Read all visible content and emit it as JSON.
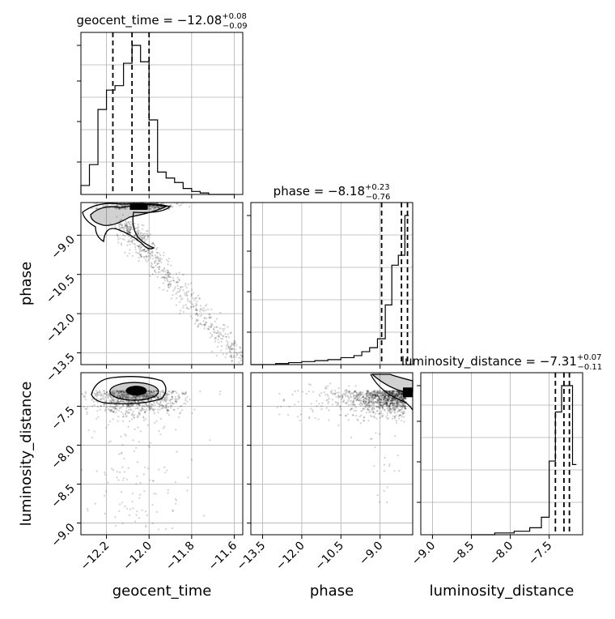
{
  "chart_data": {
    "type": "corner",
    "parameters": [
      "geocent_time",
      "phase",
      "luminosity_distance"
    ],
    "titles": [
      {
        "param": "geocent_time",
        "median": "−12.08",
        "plus": "+0.08",
        "minus": "−0.09"
      },
      {
        "param": "phase",
        "median": "−8.18",
        "plus": "+0.23",
        "minus": "−0.76"
      },
      {
        "param": "luminosity_distance",
        "median": "−7.31",
        "plus": "+0.07",
        "minus": "−0.11"
      }
    ],
    "ranges": {
      "geocent_time": [
        -12.32,
        -11.56
      ],
      "phase": [
        -13.95,
        -7.75
      ],
      "luminosity_distance": [
        -9.15,
        -7.07
      ]
    },
    "ticks": {
      "geocent_time": [
        "−12.2",
        "−12.0",
        "−11.8",
        "−11.6"
      ],
      "geocent_time_values": [
        -12.2,
        -12.0,
        -11.8,
        -11.6
      ],
      "phase": [
        "−13.5",
        "−12.0",
        "−10.5",
        "−9.0"
      ],
      "phase_values": [
        -13.5,
        -12.0,
        -10.5,
        -9.0
      ],
      "luminosity_distance": [
        "−9.0",
        "−8.5",
        "−8.0",
        "−7.5"
      ],
      "luminosity_distance_values": [
        -9.0,
        -8.5,
        -8.0,
        -7.5
      ]
    },
    "quantiles": {
      "geocent_time": [
        -12.17,
        -12.08,
        -12.0
      ],
      "phase": [
        -8.94,
        -8.18,
        -7.95
      ],
      "luminosity_distance": [
        -7.42,
        -7.31,
        -7.24
      ]
    },
    "histograms": {
      "geocent_time": {
        "edges": [
          -12.32,
          -12.28,
          -12.24,
          -12.2,
          -12.16,
          -12.12,
          -12.08,
          -12.04,
          -12.0,
          -11.96,
          -11.92,
          -11.88,
          -11.84,
          -11.8,
          -11.76,
          -11.72,
          -11.68,
          -11.64,
          -11.6
        ],
        "counts": [
          6,
          20,
          57,
          70,
          73,
          88,
          100,
          89,
          50,
          15,
          11,
          8,
          4,
          2,
          1,
          0,
          0,
          0
        ]
      },
      "phase": {
        "edges": [
          -13.95,
          -13.5,
          -13.0,
          -12.5,
          -12.0,
          -11.5,
          -11.0,
          -10.5,
          -10.0,
          -9.7,
          -9.4,
          -9.1,
          -8.8,
          -8.55,
          -8.3,
          -8.05,
          -7.9
        ],
        "counts": [
          0,
          0,
          1,
          2,
          3,
          4,
          5,
          7,
          9,
          13,
          17,
          26,
          60,
          100,
          110,
          150
        ]
      },
      "luminosity_distance": {
        "edges": [
          -8.5,
          -8.2,
          -7.95,
          -7.75,
          -7.6,
          -7.5,
          -7.42,
          -7.34,
          -7.27,
          -7.2,
          -7.15
        ],
        "counts": [
          0,
          1,
          2,
          4,
          10,
          42,
          70,
          85,
          85,
          40
        ]
      }
    },
    "grid": true,
    "legend": "none"
  }
}
